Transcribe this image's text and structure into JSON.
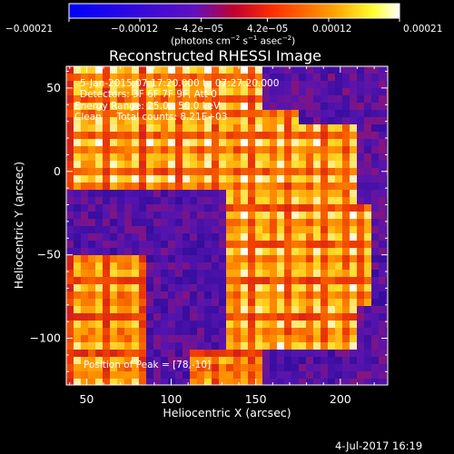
{
  "chart_data": {
    "type": "heatmap",
    "title": "Reconstructed RHESSI Image",
    "xlabel": "Heliocentric X (arcsec)",
    "ylabel": "Heliocentric Y (arcsec)",
    "xlim": [
      38,
      228
    ],
    "ylim": [
      -128,
      63
    ],
    "x_ticks": [
      "50",
      "100",
      "150",
      "200"
    ],
    "x_tick_values": [
      50,
      100,
      150,
      200
    ],
    "y_ticks": [
      "50",
      "0",
      "−50",
      "−100"
    ],
    "y_tick_values": [
      50,
      0,
      -50,
      -100
    ],
    "colorbar": {
      "ticks": [
        "−0.00021",
        "−0.00012",
        "−4.2e−05",
        "4.2e−05",
        "0.00012",
        "0.00021"
      ],
      "tick_values": [
        -0.00021,
        -0.00012,
        -4.2e-05,
        4.2e-05,
        0.00012,
        0.00021
      ],
      "range": [
        -0.00021,
        0.00021
      ],
      "unit_prefix": "(photons cm",
      "unit_mid1": " s",
      "unit_mid2": " asec",
      "unit_suffix": ")",
      "sup1": "−2",
      "sup2": "−1",
      "sup3": "−2",
      "colormap": "blue-purple-red-orange-yellow-white"
    },
    "annotations": [
      "5-Jan-2015 07:17:20.000 to 07:27:20.000",
      "Detectors: 3F 6F 7F 9F, Att 0",
      "Energy Range: 25.0 - 50.0 keV",
      "Clean     Total counts: 8.21E+03"
    ],
    "peak_label": "Position of Peak = [78,-10]",
    "peak": [
      78,
      -10
    ],
    "grid": false
  },
  "footer": {
    "date": "4-Jul-2017 16:19"
  },
  "colors": {
    "background": "#000000",
    "text": "#ffffff",
    "low": "#3a10a8",
    "high": "#ffffff"
  }
}
